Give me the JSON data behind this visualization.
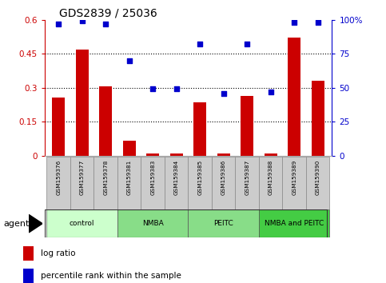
{
  "title": "GDS2839 / 25036",
  "samples": [
    "GSM159376",
    "GSM159377",
    "GSM159378",
    "GSM159381",
    "GSM159383",
    "GSM159384",
    "GSM159385",
    "GSM159386",
    "GSM159387",
    "GSM159388",
    "GSM159389",
    "GSM159390"
  ],
  "log_ratio": [
    0.255,
    0.47,
    0.305,
    0.065,
    0.01,
    0.01,
    0.235,
    0.01,
    0.265,
    0.01,
    0.52,
    0.33
  ],
  "percentile_rank": [
    97,
    99,
    97,
    70,
    49,
    49,
    82,
    46,
    82,
    47,
    98,
    98
  ],
  "bar_color": "#cc0000",
  "dot_color": "#0000cc",
  "ylim_left": [
    0,
    0.6
  ],
  "ylim_right": [
    0,
    100
  ],
  "yticks_left": [
    0,
    0.15,
    0.3,
    0.45,
    0.6
  ],
  "yticks_right": [
    0,
    25,
    50,
    75,
    100
  ],
  "ytick_labels_left": [
    "0",
    "0.15",
    "0.3",
    "0.45",
    "0.6"
  ],
  "ytick_labels_right": [
    "0",
    "25",
    "50",
    "75",
    "100%"
  ],
  "group_colors": [
    "#ccffcc",
    "#88dd88",
    "#88dd88",
    "#44cc44"
  ],
  "group_labels": [
    "control",
    "NMBA",
    "PEITC",
    "NMBA and PEITC"
  ],
  "group_ranges": [
    [
      0,
      2
    ],
    [
      3,
      5
    ],
    [
      6,
      8
    ],
    [
      9,
      11
    ]
  ],
  "agent_label": "agent",
  "legend_bar_label": "log ratio",
  "legend_dot_label": "percentile rank within the sample",
  "left_axis_color": "#cc0000",
  "right_axis_color": "#0000cc",
  "bar_width": 0.55,
  "sample_box_color": "#cccccc",
  "sample_box_edge": "#888888"
}
